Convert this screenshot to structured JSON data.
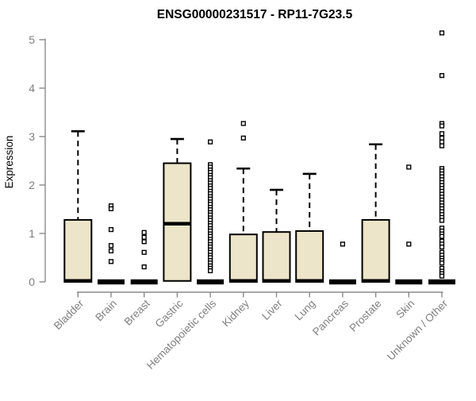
{
  "chart_data": {
    "type": "boxplot",
    "title": "ENSG00000231517 - RP11-7G23.5",
    "ylabel": "Expression",
    "xlabel": "",
    "ylim": [
      0,
      5.2
    ],
    "yticks": [
      0,
      1,
      2,
      3,
      4,
      5
    ],
    "grid": false,
    "legend": "none",
    "colors": {
      "box_fill": "#ece5c9",
      "box_stroke": "#000000",
      "whisker": "#000000",
      "outlier_stroke": "#000000",
      "outlier_fill": "#ffffff",
      "axis": "#8a8a8a",
      "tick_label": "#7f7f7f",
      "title": "#000000"
    },
    "categories": [
      "Bladder",
      "Brain",
      "Breast",
      "Gastric",
      "Hematopoietic cells",
      "Kidney",
      "Liver",
      "Lung",
      "Pancreas",
      "Prostate",
      "Skin",
      "Unknown / Other"
    ],
    "series": [
      {
        "label": "Bladder",
        "q1": 0,
        "median": 0.02,
        "q3": 1.28,
        "whisker_low": 0,
        "whisker_high": 3.11,
        "outliers": []
      },
      {
        "label": "Brain",
        "q1": 0,
        "median": 0,
        "q3": 0,
        "whisker_low": 0,
        "whisker_high": 0,
        "outliers": [
          1.57,
          1.51,
          1.08,
          0.75,
          0.64,
          0.42
        ]
      },
      {
        "label": "Breast",
        "q1": 0,
        "median": 0,
        "q3": 0,
        "whisker_low": 0,
        "whisker_high": 0,
        "outliers": [
          1.02,
          0.92,
          0.83,
          0.61,
          0.31
        ]
      },
      {
        "label": "Gastric",
        "q1": 0.02,
        "median": 1.2,
        "q3": 2.45,
        "whisker_low": 0,
        "whisker_high": 2.95,
        "outliers": []
      },
      {
        "label": "Hematopoietic cells",
        "q1": 0,
        "median": 0,
        "q3": 0,
        "whisker_low": 0,
        "whisker_high": 0,
        "outliers": [
          2.89,
          2.42,
          2.37,
          2.31,
          2.26,
          2.2,
          2.15,
          2.09,
          2.04,
          1.98,
          1.93,
          1.87,
          1.82,
          1.76,
          1.71,
          1.65,
          1.6,
          1.54,
          1.49,
          1.43,
          1.38,
          1.32,
          1.27,
          1.21,
          1.16,
          1.1,
          1.05,
          0.99,
          0.94,
          0.88,
          0.83,
          0.77,
          0.72,
          0.66,
          0.61,
          0.55,
          0.5,
          0.44,
          0.39,
          0.33,
          0.28,
          0.23
        ]
      },
      {
        "label": "Kidney",
        "q1": 0,
        "median": 0.02,
        "q3": 0.98,
        "whisker_low": 0,
        "whisker_high": 2.34,
        "outliers": [
          3.27,
          2.97
        ]
      },
      {
        "label": "Liver",
        "q1": 0,
        "median": 0.02,
        "q3": 1.03,
        "whisker_low": 0,
        "whisker_high": 1.9,
        "outliers": []
      },
      {
        "label": "Lung",
        "q1": 0,
        "median": 0.02,
        "q3": 1.05,
        "whisker_low": 0,
        "whisker_high": 2.23,
        "outliers": []
      },
      {
        "label": "Pancreas",
        "q1": 0,
        "median": 0,
        "q3": 0,
        "whisker_low": 0,
        "whisker_high": 0,
        "outliers": [
          0.78
        ]
      },
      {
        "label": "Prostate",
        "q1": 0,
        "median": 0.02,
        "q3": 1.28,
        "whisker_low": 0,
        "whisker_high": 2.84,
        "outliers": []
      },
      {
        "label": "Skin",
        "q1": 0,
        "median": 0,
        "q3": 0,
        "whisker_low": 0,
        "whisker_high": 0,
        "outliers": [
          2.37,
          0.78
        ]
      },
      {
        "label": "Unknown / Other",
        "q1": 0,
        "median": 0,
        "q3": 0,
        "whisker_low": 0,
        "whisker_high": 0,
        "outliers": [
          5.14,
          4.26,
          3.27,
          3.22,
          3.06,
          2.97,
          2.89,
          2.81,
          2.34,
          2.29,
          2.23,
          2.17,
          2.11,
          2.05,
          1.99,
          1.93,
          1.87,
          1.81,
          1.75,
          1.69,
          1.63,
          1.57,
          1.51,
          1.45,
          1.39,
          1.33,
          1.27,
          1.11,
          1.05,
          0.99,
          0.94,
          0.84,
          0.78,
          0.72,
          0.61,
          0.55,
          0.49,
          0.44,
          0.39,
          0.28,
          0.22,
          0.17,
          0.12
        ]
      }
    ]
  }
}
